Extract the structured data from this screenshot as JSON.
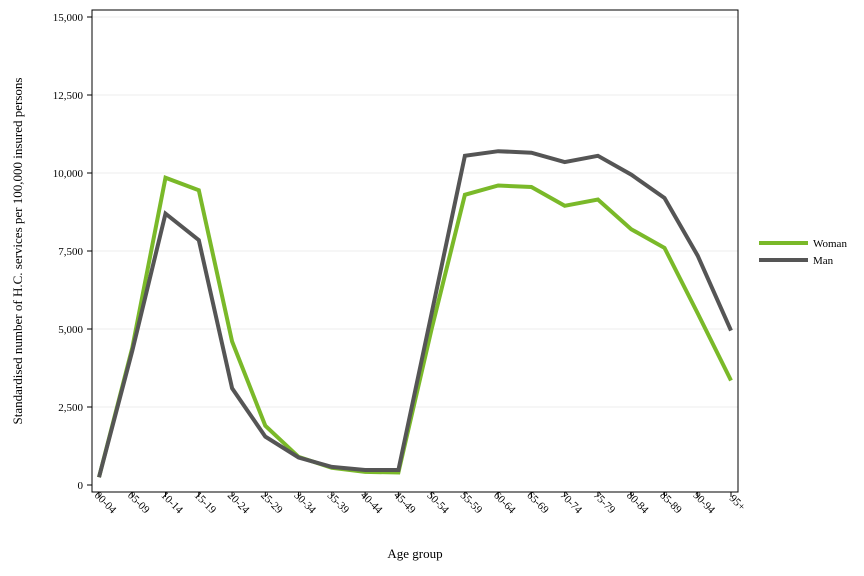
{
  "chart_data": {
    "type": "line",
    "title": "",
    "xlabel": "Age group",
    "ylabel": "Standardised number of H.C. services per 100,000 insured persons",
    "categories": [
      "00-04",
      "05-09",
      "10-14",
      "15-19",
      "20-24",
      "25-29",
      "30-34",
      "35-39",
      "40-44",
      "45-49",
      "50-54",
      "55-59",
      "60-64",
      "65-69",
      "70-74",
      "75-79",
      "80-84",
      "85-89",
      "90-94",
      "95+"
    ],
    "ylim": [
      0,
      15000
    ],
    "yticks": [
      0,
      2500,
      5000,
      7500,
      10000,
      12500,
      15000
    ],
    "ytick_labels": [
      "0",
      "2,500",
      "5,000",
      "7,500",
      "10,000",
      "12,500",
      "15,000"
    ],
    "grid": "horizontal",
    "legend_position": "right",
    "series": [
      {
        "name": "Woman",
        "color": "#7ab929",
        "values": [
          250,
          4400,
          9850,
          9450,
          4600,
          1900,
          900,
          550,
          420,
          400,
          5000,
          9300,
          9600,
          9550,
          8950,
          9150,
          8200,
          7600,
          5500,
          3350
        ]
      },
      {
        "name": "Man",
        "color": "#555555",
        "values": [
          250,
          4300,
          8700,
          7850,
          3100,
          1550,
          880,
          580,
          480,
          480,
          5500,
          10550,
          10700,
          10650,
          10350,
          10550,
          9950,
          9200,
          7350,
          4950
        ]
      }
    ]
  }
}
